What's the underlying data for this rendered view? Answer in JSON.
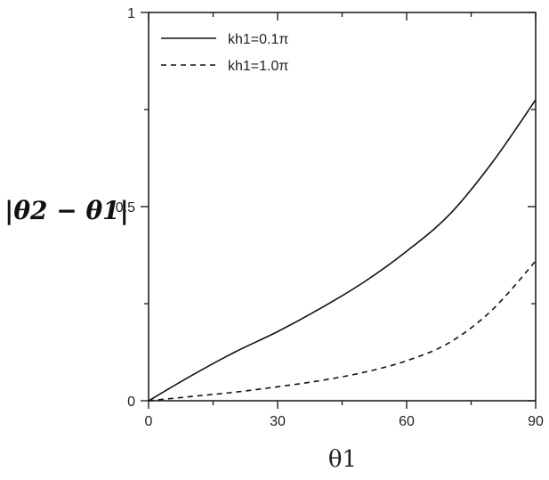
{
  "chart_data": {
    "type": "line",
    "title": "",
    "xlabel": "θ1",
    "ylabel": "|θ2 − θ1|",
    "xlim": [
      0,
      90
    ],
    "ylim": [
      0,
      1
    ],
    "x_ticks": [
      0,
      30,
      60,
      90
    ],
    "x_tick_labels": [
      "0",
      "30",
      "60",
      "90"
    ],
    "y_ticks": [
      0,
      0.5,
      1
    ],
    "y_tick_labels": [
      "0",
      "0.5",
      "1"
    ],
    "grid": false,
    "legend_position": "top-left",
    "x": [
      0,
      10,
      20,
      30,
      40,
      50,
      60,
      70,
      80,
      90
    ],
    "series": [
      {
        "name": "kh1=0.1π",
        "line_style": "solid",
        "color": "#111111",
        "values": [
          0.0,
          0.065,
          0.125,
          0.178,
          0.238,
          0.305,
          0.385,
          0.48,
          0.615,
          0.775
        ]
      },
      {
        "name": "kh1=1.0π",
        "line_style": "dashed",
        "color": "#111111",
        "values": [
          0.0,
          0.011,
          0.022,
          0.036,
          0.052,
          0.073,
          0.103,
          0.15,
          0.235,
          0.36
        ]
      }
    ]
  }
}
